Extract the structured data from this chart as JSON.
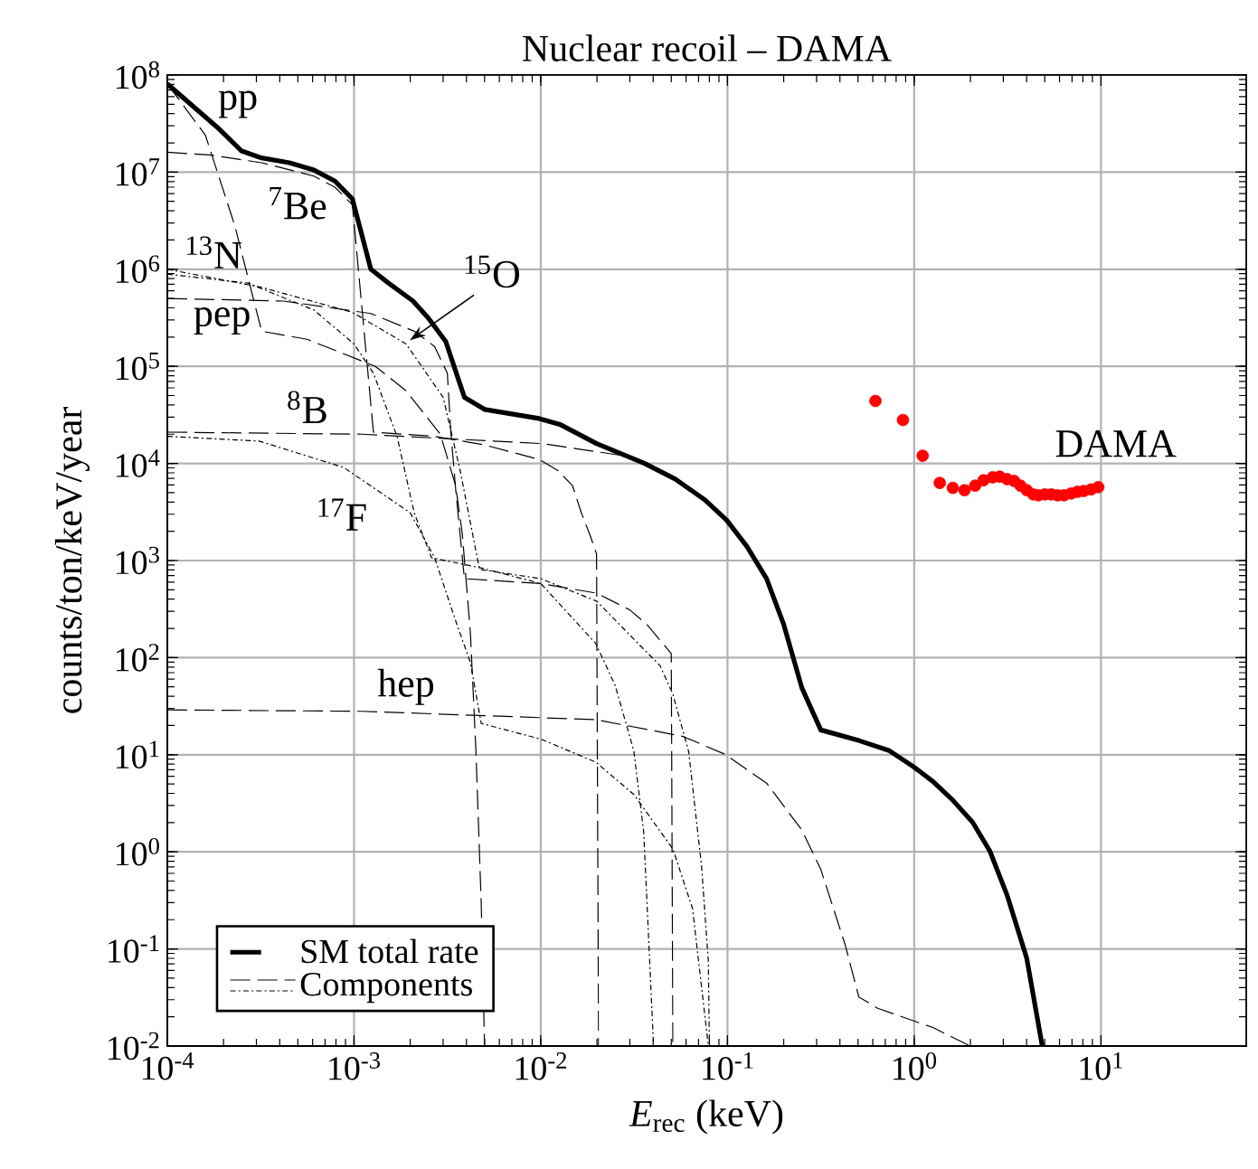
{
  "chart_data": {
    "type": "line",
    "title": "Nuclear recoil – DAMA",
    "xlabel": "*E*$_{rec}$ (keV)",
    "ylabel": "counts/ton/keV/year",
    "annotations": [
      "Components",
      {
        "text": "pp",
        "x": 0.00016,
        "y": 24000000.0
      },
      {
        "text": "$^{7}$Be",
        "x": 0.00061,
        "y": 9100000.0
      },
      {
        "text": "$^{13}$N",
        "x": 0.00027,
        "y": 720000.0
      },
      {
        "text": "$^{15}$O",
        "x": 0.0019,
        "y": 170000.0
      },
      {
        "text": "pep",
        "x": 0.00042,
        "y": 470000.0
      },
      {
        "text": "$^{8}$B",
        "x": 0.0011,
        "y": 20000.0
      },
      {
        "text": "$^{17}$F",
        "x": 0.00088,
        "y": 9100.0
      },
      {
        "text": "hep",
        "x": 0.0011,
        "y": 28
      }
    ],
    "log": "xy",
    "grid": true,
    "legend": "bottom left",
    "xlim": [
      0.0001,
      60
    ],
    "ylim": [
      0.01,
      100000000
    ],
    "xticks": [
      {
        "value": 0.0001,
        "label": "10$^{-4}$"
      },
      {
        "value": 0.001,
        "label": "10$^{-3}$"
      },
      {
        "value": 0.01,
        "label": "10$^{-2}$"
      },
      {
        "value": 0.1,
        "label": "10$^{-1}$"
      },
      {
        "value": 1,
        "label": "10$^{0}$"
      },
      {
        "value": 10,
        "label": "10$^{1}$"
      }
    ],
    "yticks": [
      {
        "value": 0.01,
        "label": "10$^{-2}$"
      },
      {
        "value": 0.1,
        "label": "10$^{-1}$"
      },
      {
        "value": 1,
        "label": "10$^{0}$"
      },
      {
        "value": 10,
        "label": "10$^{1}$"
      },
      {
        "value": 100,
        "label": "10$^{2}$"
      },
      {
        "value": 1000,
        "label": "10$^{3}$"
      },
      {
        "value": 10000,
        "label": "10$^{4}$"
      },
      {
        "value": 100000,
        "label": "10$^{5}$"
      },
      {
        "value": 1000000,
        "label": "10$^{6}$"
      },
      {
        "value": 10000000,
        "label": "10$^{7}$"
      },
      {
        "value": 100000000,
        "label": "10$^{8}$"
      }
    ],
    "series": [
      {
        "name": "SM total rate",
        "color": "#000000",
        "line_style": "solid",
        "x": [
          0.0001,
          0.000185,
          0.00025,
          0.00032,
          0.00045,
          0.00061,
          0.00079,
          0.00098,
          0.00123,
          0.00153,
          0.00207,
          0.00248,
          0.0031,
          0.0039,
          0.005,
          0.0098,
          0.0128,
          0.0199,
          0.036,
          0.0525,
          0.0759,
          0.099,
          0.127,
          0.162,
          0.2,
          0.25,
          0.316,
          0.505,
          0.736,
          0.984,
          1.26,
          1.61,
          2.06,
          2.54,
          3.14,
          4.0,
          4.85
        ],
        "values": [
          81000000.0,
          29000000.0,
          16500000.0,
          14000000.0,
          12500000.0,
          10500000.0,
          8100000.0,
          5300000.0,
          1000000.0,
          720000.0,
          470000.0,
          320000.0,
          180000.0,
          48000.0,
          36000.0,
          29000.0,
          25000.0,
          16000.0,
          10000.0,
          6900.0,
          4200.0,
          2600.0,
          1400.0,
          650,
          220,
          49,
          18,
          14,
          11,
          7.6,
          5.3,
          3.4,
          2.0,
          1.02,
          0.36,
          0.081,
          0.01
        ]
      },
      {
        "color": "#000000",
        "line_style": "dashed",
        "x": [
          0.0001,
          0.00016,
          0.00023,
          0.00032,
          0.00056,
          0.0013,
          0.0019,
          0.0029,
          0.0035,
          0.0038,
          0.0042,
          0.0045,
          0.0048,
          0.005
        ],
        "values": [
          81000000.0,
          24000000.0,
          2800000.0,
          230000.0,
          190000.0,
          100000.0,
          56000.0,
          20000.0,
          5900.0,
          1900.0,
          180,
          10.5,
          0.29,
          0.01
        ]
      },
      {
        "color": "#000000",
        "line_style": "dashed",
        "x": [
          0.0001,
          0.00017,
          0.00032,
          0.00061,
          0.00079,
          0.00098,
          0.00127,
          0.0027,
          0.005,
          0.0098,
          0.0123,
          0.0148,
          0.0165,
          0.0184,
          0.0199,
          0.0204
        ],
        "values": [
          16000000.0,
          15000000.0,
          12500000.0,
          9100000.0,
          7000000.0,
          4600000.0,
          21000.0,
          19000.0,
          15500.0,
          11000.0,
          8500.0,
          5900.0,
          3100.0,
          1800.0,
          1170.0,
          0.01
        ]
      },
      {
        "color": "#000000",
        "line_style": "dotted",
        "x": [
          0.0001,
          0.00027,
          0.00061,
          0.001,
          0.00127,
          0.0017,
          0.0021,
          0.0026,
          0.0049,
          0.01,
          0.0197,
          0.025,
          0.0315,
          0.0356,
          0.0402
        ],
        "values": [
          890000.0,
          720000.0,
          380000.0,
          170000.0,
          85000.0,
          19000.0,
          3100.0,
          1070.0,
          830,
          580,
          140,
          52,
          11,
          1.6,
          0.01
        ]
      },
      {
        "color": "#000000",
        "line_style": "dotted",
        "x": [
          0.0001,
          0.00032,
          0.00098,
          0.0019,
          0.003,
          0.0037,
          0.0047,
          0.01,
          0.02,
          0.0315,
          0.0435,
          0.051,
          0.062,
          0.0726,
          0.079,
          0.08
        ],
        "values": [
          1000000.0,
          650000.0,
          360000.0,
          170000.0,
          48000.0,
          8500.0,
          810,
          650,
          380,
          155,
          83,
          42,
          10.7,
          0.72,
          0.074,
          0.01
        ]
      },
      {
        "color": "#000000",
        "line_style": "dashed",
        "x": [
          0.0001,
          0.00042,
          0.00123,
          0.0021,
          0.0027,
          0.00316,
          0.0033,
          0.0035,
          0.0039,
          0.01,
          0.02,
          0.03,
          0.037,
          0.05,
          0.051
        ],
        "values": [
          500000.0,
          470000.0,
          350000.0,
          230000.0,
          160000.0,
          85000.0,
          21000.0,
          5500.0,
          650,
          580,
          460,
          310,
          220,
          110,
          0.01
        ]
      },
      {
        "color": "#000000",
        "line_style": "dashed",
        "x": [
          0.0001,
          0.0011,
          0.0102,
          0.0278
        ],
        "values": [
          21000.0,
          20000.0,
          16000.0,
          12000.0
        ]
      },
      {
        "color": "#000000",
        "line_style": "dotted",
        "x": [
          0.0001,
          0.00031,
          0.00088,
          0.002,
          0.0027,
          0.0035,
          0.0042,
          0.0048,
          0.01,
          0.0197,
          0.0315,
          0.051,
          0.065,
          0.079
        ],
        "values": [
          19000.0,
          17000.0,
          9100.0,
          3100.0,
          1070.0,
          240,
          89,
          21,
          14.5,
          8.4,
          3.9,
          1.07,
          0.26,
          0.01
        ]
      },
      {
        "color": "#000000",
        "line_style": "dashed",
        "x": [
          0.0001,
          0.0011,
          0.0197,
          0.0574,
          0.096,
          0.162,
          0.25,
          0.316,
          0.427,
          0.505,
          0.637,
          1.26,
          1.95
        ],
        "values": [
          29,
          28,
          23,
          15.5,
          10.2,
          5.1,
          1.68,
          0.66,
          0.11,
          0.032,
          0.0245,
          0.0155,
          0.0102
        ]
      },
      {
        "name": "DAMA",
        "type": "scatter",
        "color": "#ff0000",
        "marker": "circle",
        "x": [
          0.62,
          0.87,
          1.11,
          1.37,
          1.61,
          1.86,
          2.12,
          2.35,
          2.63,
          2.87,
          3.14,
          3.43,
          3.71,
          4.01,
          4.34,
          4.63,
          5.01,
          5.42,
          5.86,
          6.34,
          6.92,
          7.48,
          8.09,
          8.85,
          9.68
        ],
        "values": [
          44000.0,
          28000.0,
          12000.0,
          6300.0,
          5600.0,
          5300.0,
          5900.0,
          6700.0,
          7200.0,
          7300.0,
          6900.0,
          6600.0,
          5900.0,
          5300.0,
          4800.0,
          4700.0,
          4800.0,
          4800.0,
          4700.0,
          4700.0,
          4900.0,
          5100.0,
          5200.0,
          5400.0,
          5700.0
        ]
      }
    ]
  }
}
